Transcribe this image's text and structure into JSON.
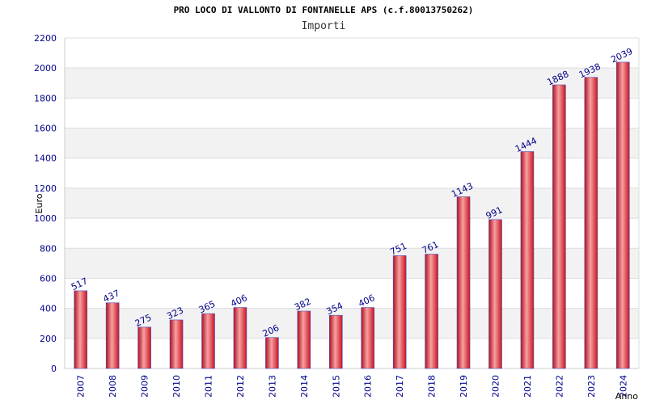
{
  "chart_data": {
    "type": "bar",
    "title": "PRO LOCO DI VALLONTO DI FONTANELLE APS (c.f.80013750262)",
    "subtitle": "Importi",
    "xlabel": "Anno",
    "ylabel": "Euro",
    "categories": [
      "2007",
      "2008",
      "2009",
      "2010",
      "2011",
      "2012",
      "2013",
      "2014",
      "2015",
      "2016",
      "2017",
      "2018",
      "2019",
      "2020",
      "2021",
      "2022",
      "2023",
      "2024"
    ],
    "values": [
      517,
      437,
      275,
      323,
      365,
      406,
      206,
      382,
      354,
      406,
      751,
      761,
      1143,
      991,
      1444,
      1888,
      1938,
      2039
    ],
    "ylim": [
      0,
      2200
    ],
    "yticks": [
      0,
      200,
      400,
      600,
      800,
      1000,
      1200,
      1400,
      1600,
      1800,
      2000,
      2200
    ],
    "grid": true,
    "legend": "none",
    "colors": {
      "bar": "#e8202a",
      "bar_highlight": "#f7a0a4",
      "bar_edge": "#5050c0",
      "band": "#f2f2f2",
      "axis_text": "#00008b"
    }
  }
}
